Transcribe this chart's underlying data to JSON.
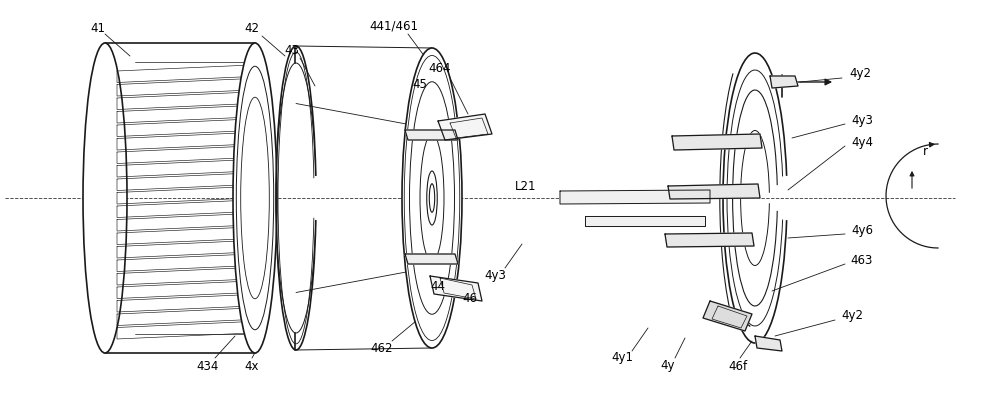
{
  "bg_color": "#ffffff",
  "line_color": "#1a1a1a",
  "label_color": "#000000",
  "figsize": [
    10.0,
    3.96
  ],
  "dpi": 100,
  "xlim": [
    0,
    10
  ],
  "ylim": [
    0,
    3.96
  ],
  "label_fs": 8.5,
  "leader_lw": 0.6,
  "main_lw": 0.9,
  "thick_lw": 1.2,
  "thin_lw": 0.5
}
